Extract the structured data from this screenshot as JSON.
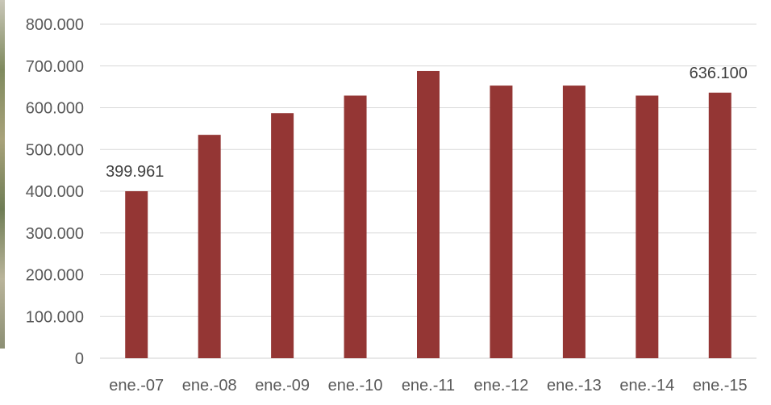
{
  "chart_data": {
    "type": "bar",
    "title": "",
    "xlabel": "",
    "ylabel": "",
    "categories": [
      "ene.-07",
      "ene.-08",
      "ene.-09",
      "ene.-10",
      "ene.-11",
      "ene.-12",
      "ene.-13",
      "ene.-14",
      "ene.-15"
    ],
    "values": [
      399961,
      535000,
      587000,
      629000,
      688000,
      653000,
      653000,
      629000,
      636100
    ],
    "ylim": [
      0,
      800000
    ],
    "yticks": [
      "0",
      "100.000",
      "200.000",
      "300.000",
      "400.000",
      "500.000",
      "600.000",
      "700.000",
      "800.000"
    ],
    "data_labels": [
      {
        "index": 0,
        "text": "399.961"
      },
      {
        "index": 8,
        "text": "636.100"
      }
    ],
    "bar_color": "#943634",
    "grid": true,
    "legend": "none"
  }
}
